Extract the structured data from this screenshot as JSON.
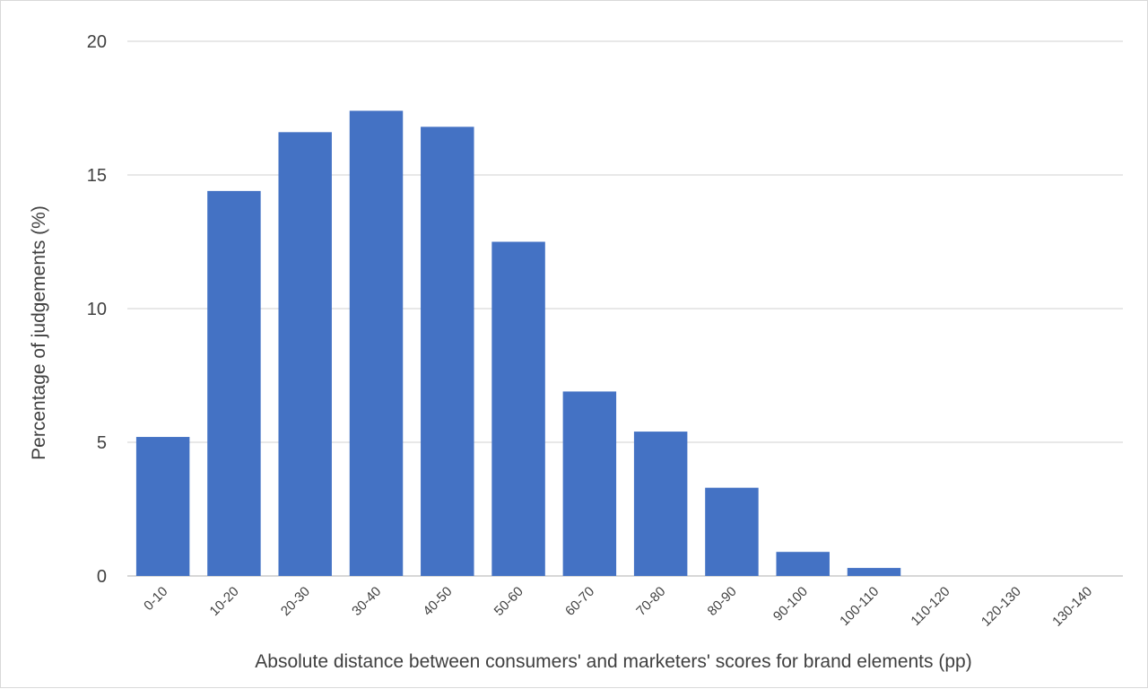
{
  "chart_data": {
    "type": "bar",
    "categories": [
      "0-10",
      "10-20",
      "20-30",
      "30-40",
      "40-50",
      "50-60",
      "60-70",
      "70-80",
      "80-90",
      "90-100",
      "100-110",
      "110-120",
      "120-130",
      "130-140"
    ],
    "values": [
      5.2,
      14.4,
      16.6,
      17.4,
      16.8,
      12.5,
      6.9,
      5.4,
      3.3,
      0.9,
      0.3,
      0,
      0,
      0
    ],
    "xlabel": "Absolute distance between consumers' and marketers' scores for brand elements (pp)",
    "ylabel": "Percentage of judgements (%)",
    "ylim": [
      0,
      20
    ],
    "yticks": [
      "0",
      "5",
      "10",
      "15",
      "20"
    ],
    "grid": true,
    "bar_color": "#4472C4",
    "grid_color": "#d9d9d9",
    "axis_color": "#bfbfbf"
  }
}
